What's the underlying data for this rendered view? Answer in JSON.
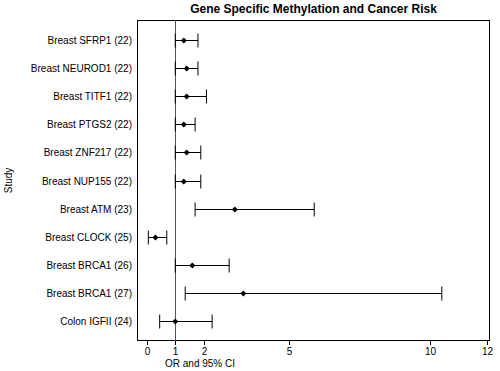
{
  "chart_data": {
    "type": "forest",
    "title": "Gene Specific Methylation and Cancer Risk",
    "x_label": "OR and 95% CI",
    "y_label": "Study",
    "orientation": "horizontal",
    "categories": [
      "Breast SFRP1 (22)",
      "Breast NEUROD1 (22)",
      "Breast TITF1 (22)",
      "Breast PTGS2 (22)",
      "Breast ZNF217 (22)",
      "Breast NUP155 (22)",
      "Breast ATM (23)",
      "Breast CLOCK (25)",
      "Breast BRCA1 (26)",
      "Breast BRCA1 (27)",
      "Colon IGFII (24)"
    ],
    "values": [
      1.3,
      1.4,
      1.4,
      1.3,
      1.4,
      1.3,
      3.1,
      0.3,
      1.6,
      3.4,
      1.0
    ],
    "ci_lower": [
      1.0,
      1.0,
      1.0,
      1.0,
      1.0,
      1.0,
      1.7,
      0.05,
      1.0,
      1.35,
      0.45
    ],
    "ci_upper": [
      1.8,
      1.8,
      2.1,
      1.7,
      1.9,
      1.9,
      5.9,
      0.7,
      2.9,
      10.4,
      2.3
    ],
    "reference_line": 1,
    "color": "#000000",
    "marker": "diamond",
    "xlim": [
      -0.35,
      12.1
    ],
    "xticks": [
      0,
      1,
      2,
      5,
      10,
      12
    ]
  }
}
